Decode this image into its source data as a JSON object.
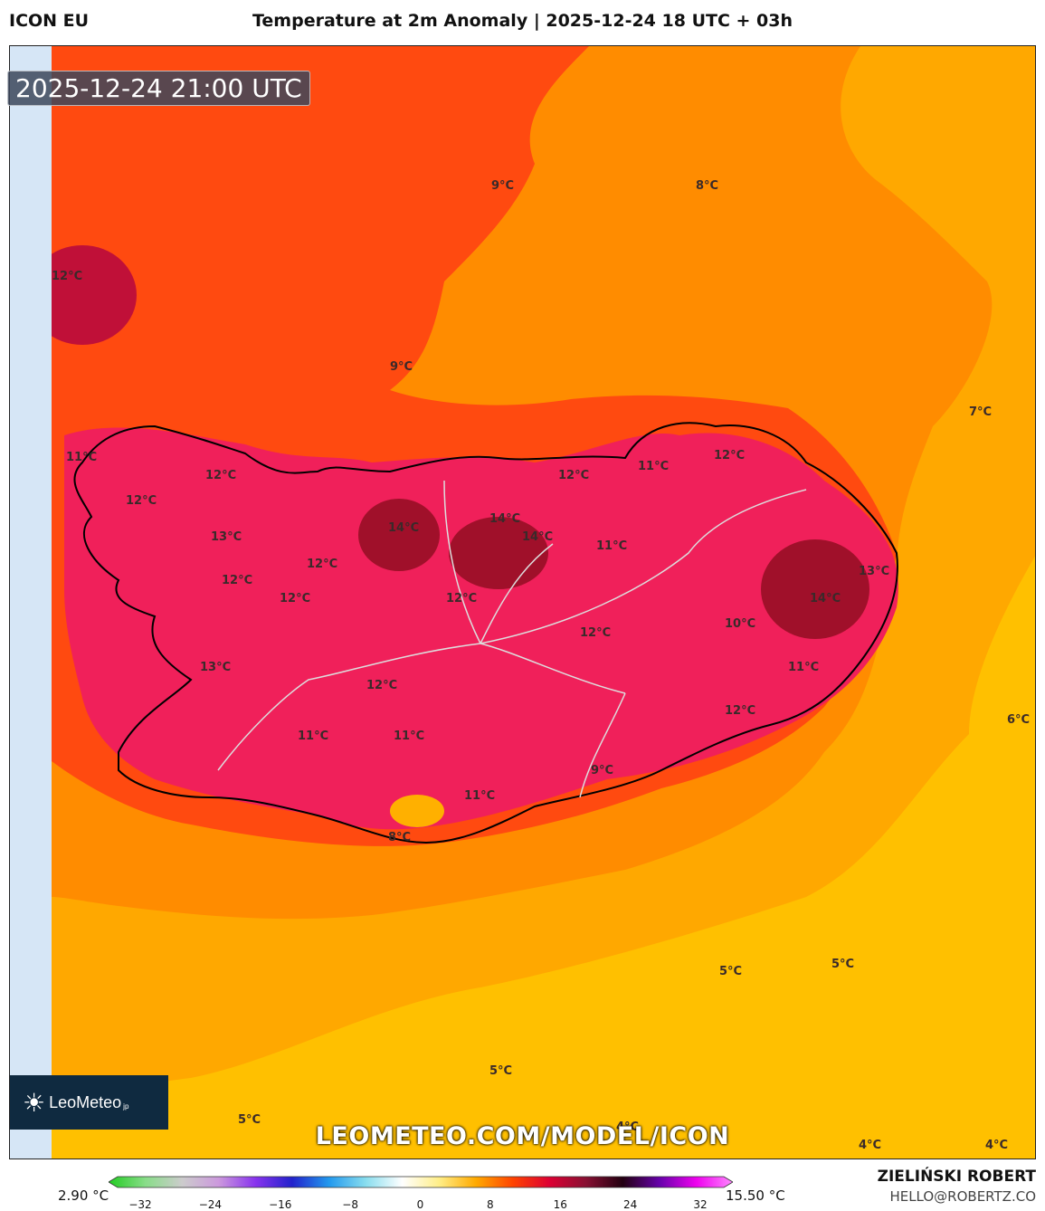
{
  "header": {
    "model": "ICON EU",
    "title": "Temperature at 2m Anomaly | 2025-12-24 18 UTC + 03h"
  },
  "map": {
    "valid_time": "2025-12-24 21:00 UTC",
    "watermark_url": "LEOMETEO.COM/MODEL/ICON",
    "logo_text": "LeoMeteo",
    "logo_suffix": "jp",
    "contour_labels": [
      "9°C",
      "8°C",
      "12°C",
      "9°C",
      "7°C",
      "11°C",
      "12°C",
      "12°C",
      "11°C",
      "12°C",
      "12°C",
      "13°C",
      "14°C",
      "14°C",
      "14°C",
      "11°C",
      "12°C",
      "12°C",
      "12°C",
      "12°C",
      "13°C",
      "14°C",
      "10°C",
      "12°C",
      "13°C",
      "12°C",
      "11°C",
      "11°C",
      "11°C",
      "12°C",
      "6°C",
      "9°C",
      "11°C",
      "8°C",
      "5°C",
      "5°C",
      "5°C",
      "5°C",
      "4°C",
      "4°C",
      "4°C"
    ],
    "colors": {
      "sea_warm": "#ff8c00",
      "sea_mild": "#ffb000",
      "sea_cool": "#ffc000",
      "land_hot": "#f0205a",
      "land_very_hot": "#a0102a",
      "warm_red": "#ff3a10",
      "strip": "#d6e6f6"
    }
  },
  "legend": {
    "min_label": "2.90 °C",
    "max_label": "15.50 °C",
    "ticks": [
      "−32",
      "−24",
      "−16",
      "−8",
      "0",
      "8",
      "16",
      "24",
      "32"
    ],
    "colors": [
      "#22cc22",
      "#88dd88",
      "#cccccc",
      "#cc99dd",
      "#8833ee",
      "#2222cc",
      "#2299ee",
      "#88ddee",
      "#ffffff",
      "#ffee88",
      "#ffaa00",
      "#ff4400",
      "#dd0033",
      "#881133",
      "#220011",
      "#6600aa",
      "#ee00ee",
      "#ff88ff"
    ]
  },
  "credits": {
    "author": "ZIELIŃSKI ROBERT",
    "email": "HELLO@ROBERTZ.CO"
  }
}
